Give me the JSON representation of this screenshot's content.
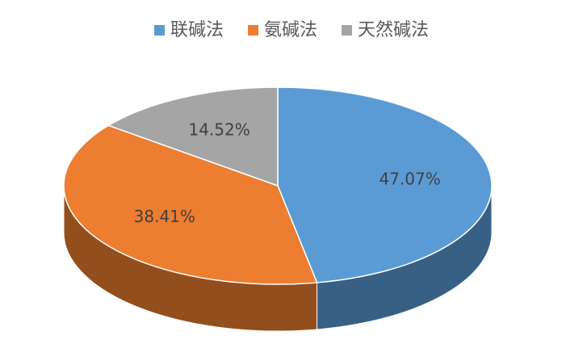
{
  "chart_data": {
    "type": "pie3d",
    "categories": [
      "联碱法",
      "氨碱法",
      "天然碱法"
    ],
    "values": [
      47.07,
      38.41,
      14.52
    ],
    "value_labels": [
      "47.07%",
      "38.41%",
      "14.52%"
    ],
    "colors": [
      "#5b9bd5",
      "#ed7d31",
      "#a5a5a5"
    ],
    "legend": "top"
  }
}
